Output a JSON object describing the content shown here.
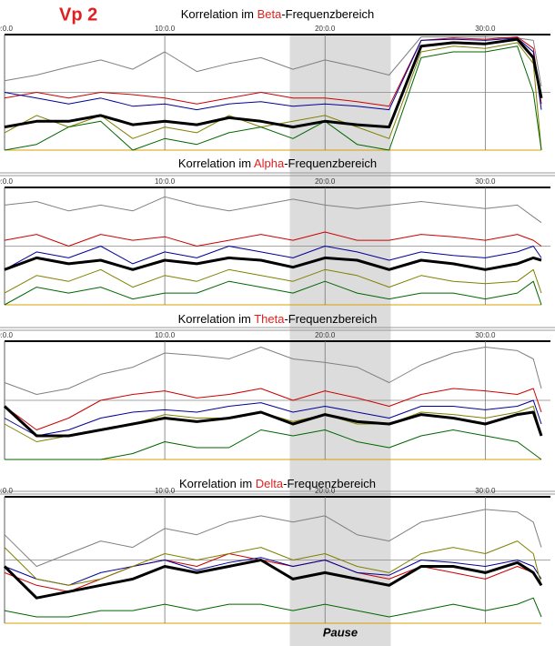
{
  "title": "Vp 2",
  "pause": {
    "label": "Pause",
    "range": [
      17.8,
      24.1
    ]
  },
  "chart_data": [
    {
      "type": "line",
      "title_parts": [
        "Korrelation im ",
        "Beta",
        "-Frequenzbereich"
      ],
      "x": [
        0,
        2,
        4,
        6,
        8,
        10,
        12,
        14,
        16,
        18,
        20,
        22,
        24,
        26,
        28,
        30,
        32,
        33,
        33.5
      ],
      "xlim": [
        0,
        33.5
      ],
      "ylim": [
        0,
        1
      ],
      "xticks": [
        {
          "value": 0,
          "label": "0:0.0"
        },
        {
          "value": 10,
          "label": "10:0.0"
        },
        {
          "value": 20,
          "label": "20:0.0"
        },
        {
          "value": 30,
          "label": "30:0.0"
        }
      ],
      "series": [
        {
          "color": "#808080",
          "values": [
            0.6,
            0.65,
            0.72,
            0.78,
            0.7,
            0.85,
            0.68,
            0.75,
            0.8,
            0.7,
            0.78,
            0.72,
            0.65,
            0.98,
            0.98,
            0.98,
            0.97,
            0.95,
            0.55
          ]
        },
        {
          "color": "#cc0000",
          "values": [
            0.45,
            0.5,
            0.45,
            0.5,
            0.48,
            0.45,
            0.4,
            0.45,
            0.5,
            0.45,
            0.45,
            0.42,
            0.38,
            0.95,
            0.97,
            0.96,
            0.98,
            0.88,
            0.4
          ]
        },
        {
          "color": "#000099",
          "values": [
            0.5,
            0.45,
            0.4,
            0.45,
            0.38,
            0.4,
            0.35,
            0.4,
            0.42,
            0.38,
            0.4,
            0.38,
            0.35,
            0.95,
            0.96,
            0.95,
            0.97,
            0.85,
            0.35
          ]
        },
        {
          "color": "#808000",
          "values": [
            0.15,
            0.3,
            0.2,
            0.3,
            0.1,
            0.2,
            0.15,
            0.3,
            0.2,
            0.25,
            0.3,
            0.2,
            0.1,
            0.85,
            0.9,
            0.88,
            0.93,
            0.75,
            0.0
          ]
        },
        {
          "color": "#006600",
          "values": [
            0.0,
            0.05,
            0.2,
            0.25,
            0.0,
            0.1,
            0.05,
            0.15,
            0.2,
            0.1,
            0.25,
            0.05,
            0.0,
            0.8,
            0.85,
            0.85,
            0.9,
            0.5,
            0.0
          ]
        },
        {
          "color": "#000000",
          "emphasis": true,
          "values": [
            0.2,
            0.25,
            0.25,
            0.3,
            0.22,
            0.25,
            0.22,
            0.28,
            0.25,
            0.2,
            0.25,
            0.22,
            0.2,
            0.9,
            0.93,
            0.92,
            0.96,
            0.8,
            0.45
          ]
        }
      ]
    },
    {
      "type": "line",
      "title_parts": [
        "Korrelation im ",
        "Alpha",
        "-Frequenzbereich"
      ],
      "x": [
        0,
        2,
        4,
        6,
        8,
        10,
        12,
        14,
        16,
        18,
        20,
        22,
        24,
        26,
        28,
        30,
        32,
        33,
        33.5
      ],
      "xlim": [
        0,
        33.5
      ],
      "ylim": [
        0,
        1
      ],
      "xticks": [
        {
          "value": 0,
          "label": "0:0.0"
        },
        {
          "value": 10,
          "label": "10:0.0"
        },
        {
          "value": 20,
          "label": "20:0.0"
        },
        {
          "value": 30,
          "label": "30:0.0"
        }
      ],
      "series": [
        {
          "color": "#808080",
          "values": [
            0.85,
            0.88,
            0.8,
            0.85,
            0.8,
            0.92,
            0.85,
            0.8,
            0.85,
            0.9,
            0.85,
            0.82,
            0.85,
            0.88,
            0.85,
            0.82,
            0.85,
            0.75,
            0.7
          ]
        },
        {
          "color": "#cc0000",
          "values": [
            0.55,
            0.6,
            0.5,
            0.6,
            0.55,
            0.58,
            0.5,
            0.55,
            0.6,
            0.55,
            0.62,
            0.55,
            0.55,
            0.6,
            0.58,
            0.55,
            0.6,
            0.55,
            0.5
          ]
        },
        {
          "color": "#000099",
          "values": [
            0.3,
            0.45,
            0.4,
            0.5,
            0.35,
            0.45,
            0.4,
            0.5,
            0.45,
            0.4,
            0.5,
            0.45,
            0.38,
            0.45,
            0.42,
            0.4,
            0.45,
            0.5,
            0.4
          ]
        },
        {
          "color": "#808000",
          "values": [
            0.1,
            0.25,
            0.2,
            0.3,
            0.15,
            0.25,
            0.2,
            0.3,
            0.25,
            0.2,
            0.3,
            0.25,
            0.15,
            0.25,
            0.2,
            0.18,
            0.2,
            0.3,
            0.1
          ]
        },
        {
          "color": "#006600",
          "values": [
            0.0,
            0.15,
            0.1,
            0.15,
            0.05,
            0.1,
            0.1,
            0.2,
            0.15,
            0.1,
            0.2,
            0.1,
            0.05,
            0.1,
            0.1,
            0.05,
            0.1,
            0.2,
            0.0
          ]
        },
        {
          "color": "#000000",
          "emphasis": true,
          "values": [
            0.3,
            0.4,
            0.35,
            0.38,
            0.3,
            0.38,
            0.35,
            0.4,
            0.38,
            0.32,
            0.4,
            0.38,
            0.3,
            0.38,
            0.35,
            0.3,
            0.35,
            0.4,
            0.38
          ]
        }
      ]
    },
    {
      "type": "line",
      "title_parts": [
        "Korrelation im ",
        "Theta",
        "-Frequenzbereich"
      ],
      "x": [
        0,
        2,
        4,
        6,
        8,
        10,
        12,
        14,
        16,
        18,
        20,
        22,
        24,
        26,
        28,
        30,
        32,
        33,
        33.5
      ],
      "xlim": [
        0,
        33.5
      ],
      "ylim": [
        0,
        1
      ],
      "xticks": [
        {
          "value": 0,
          "label": "0:0.0"
        },
        {
          "value": 10,
          "label": "10:0.0"
        },
        {
          "value": 20,
          "label": "20:0.0"
        },
        {
          "value": 30,
          "label": "30:0.0"
        }
      ],
      "series": [
        {
          "color": "#808080",
          "values": [
            0.65,
            0.55,
            0.6,
            0.72,
            0.78,
            0.9,
            0.88,
            0.85,
            0.95,
            0.85,
            0.82,
            0.78,
            0.65,
            0.8,
            0.9,
            0.95,
            0.92,
            0.85,
            0.6
          ]
        },
        {
          "color": "#cc0000",
          "values": [
            0.45,
            0.25,
            0.35,
            0.5,
            0.55,
            0.58,
            0.52,
            0.55,
            0.6,
            0.5,
            0.58,
            0.52,
            0.45,
            0.55,
            0.6,
            0.58,
            0.55,
            0.6,
            0.4
          ]
        },
        {
          "color": "#000099",
          "values": [
            0.35,
            0.2,
            0.25,
            0.35,
            0.4,
            0.42,
            0.4,
            0.45,
            0.48,
            0.4,
            0.45,
            0.4,
            0.35,
            0.45,
            0.45,
            0.42,
            0.45,
            0.5,
            0.3
          ]
        },
        {
          "color": "#808000",
          "values": [
            0.3,
            0.15,
            0.2,
            0.25,
            0.3,
            0.38,
            0.35,
            0.35,
            0.4,
            0.32,
            0.38,
            0.3,
            0.3,
            0.4,
            0.38,
            0.35,
            0.4,
            0.45,
            0.2
          ]
        },
        {
          "color": "#006600",
          "values": [
            0.0,
            0.0,
            0.0,
            0.0,
            0.05,
            0.15,
            0.1,
            0.1,
            0.25,
            0.2,
            0.25,
            0.15,
            0.1,
            0.2,
            0.25,
            0.2,
            0.15,
            0.05,
            0.0
          ]
        },
        {
          "color": "#000000",
          "emphasis": true,
          "values": [
            0.45,
            0.2,
            0.2,
            0.25,
            0.3,
            0.35,
            0.32,
            0.35,
            0.4,
            0.3,
            0.38,
            0.32,
            0.3,
            0.38,
            0.35,
            0.3,
            0.38,
            0.4,
            0.2
          ]
        }
      ]
    },
    {
      "type": "line",
      "title_parts": [
        "Korrelation im ",
        "Delta",
        "-Frequenzbereich"
      ],
      "x": [
        0,
        2,
        4,
        6,
        8,
        10,
        12,
        14,
        16,
        18,
        20,
        22,
        24,
        26,
        28,
        30,
        32,
        33,
        33.5
      ],
      "xlim": [
        0,
        33.5
      ],
      "ylim": [
        0,
        1
      ],
      "xticks": [
        {
          "value": 0,
          "label": "0:0.0"
        },
        {
          "value": 10,
          "label": "10:0.0"
        },
        {
          "value": 20,
          "label": "20:0.0"
        },
        {
          "value": 30,
          "label": "30:0.0"
        }
      ],
      "series": [
        {
          "color": "#808080",
          "values": [
            0.7,
            0.45,
            0.55,
            0.65,
            0.6,
            0.75,
            0.7,
            0.8,
            0.85,
            0.8,
            0.85,
            0.7,
            0.65,
            0.8,
            0.85,
            0.9,
            0.88,
            0.8,
            0.6
          ]
        },
        {
          "color": "#cc0000",
          "values": [
            0.4,
            0.3,
            0.25,
            0.35,
            0.45,
            0.5,
            0.45,
            0.55,
            0.5,
            0.45,
            0.5,
            0.4,
            0.35,
            0.45,
            0.4,
            0.35,
            0.45,
            0.4,
            0.3
          ]
        },
        {
          "color": "#000099",
          "values": [
            0.45,
            0.35,
            0.3,
            0.4,
            0.45,
            0.5,
            0.42,
            0.48,
            0.52,
            0.45,
            0.5,
            0.4,
            0.38,
            0.5,
            0.48,
            0.45,
            0.5,
            0.45,
            0.35
          ]
        },
        {
          "color": "#808000",
          "values": [
            0.6,
            0.35,
            0.3,
            0.35,
            0.45,
            0.55,
            0.5,
            0.55,
            0.6,
            0.5,
            0.55,
            0.45,
            0.4,
            0.55,
            0.6,
            0.55,
            0.65,
            0.55,
            0.3
          ]
        },
        {
          "color": "#006600",
          "values": [
            0.1,
            0.05,
            0.05,
            0.1,
            0.1,
            0.15,
            0.1,
            0.15,
            0.15,
            0.1,
            0.15,
            0.1,
            0.05,
            0.1,
            0.15,
            0.1,
            0.15,
            0.2,
            0.05
          ]
        },
        {
          "color": "#000000",
          "emphasis": true,
          "values": [
            0.45,
            0.2,
            0.25,
            0.3,
            0.35,
            0.45,
            0.4,
            0.45,
            0.5,
            0.35,
            0.4,
            0.35,
            0.3,
            0.45,
            0.45,
            0.4,
            0.48,
            0.4,
            0.3
          ]
        }
      ]
    }
  ]
}
